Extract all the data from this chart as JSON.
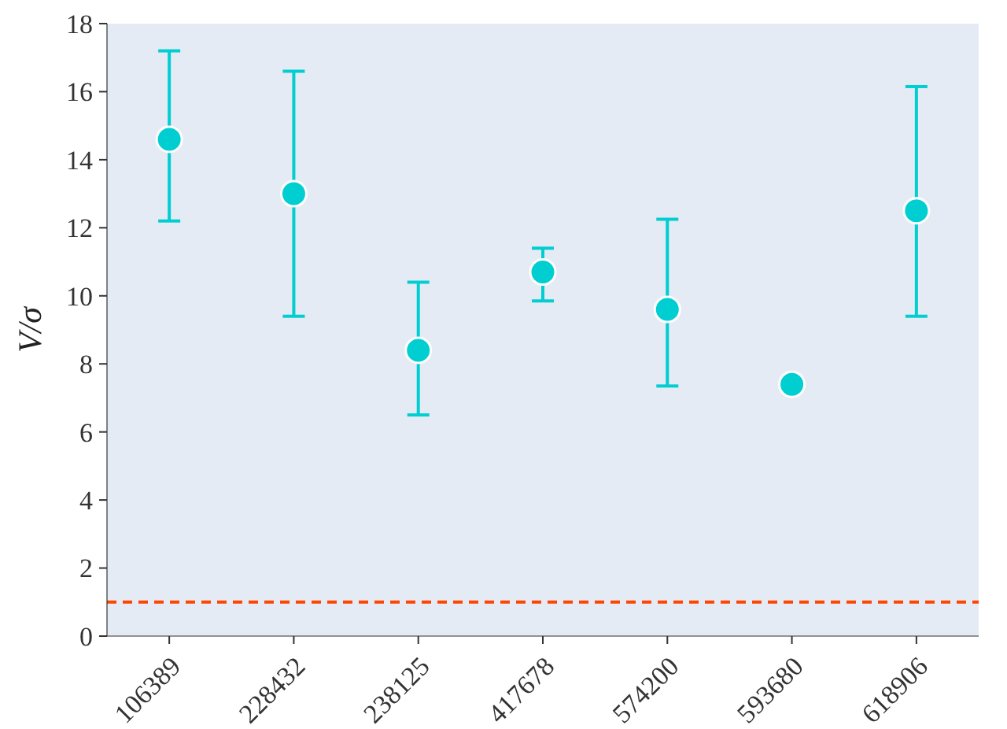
{
  "chart_data": {
    "type": "scatter",
    "ylabel": "V/σ",
    "categories": [
      "106389",
      "228432",
      "238125",
      "417678",
      "574200",
      "593680",
      "618906"
    ],
    "series": [
      {
        "color": "#00ced1",
        "values": [
          14.6,
          13.0,
          8.4,
          10.7,
          9.6,
          7.4,
          12.5
        ],
        "errors": [
          [
            12.2,
            17.2
          ],
          [
            9.4,
            16.6
          ],
          [
            6.5,
            10.4
          ],
          [
            9.85,
            11.4
          ],
          [
            7.35,
            12.25
          ],
          null,
          [
            9.4,
            16.15
          ]
        ]
      }
    ],
    "ylim": [
      0,
      18
    ],
    "yticks": [
      0,
      2,
      4,
      6,
      8,
      10,
      12,
      14,
      16,
      18
    ],
    "grid": false,
    "marker": "circle",
    "ref_lines": [
      {
        "axis": "y",
        "value": 1,
        "color": "#ff4500",
        "line_style": "dashed"
      }
    ]
  }
}
